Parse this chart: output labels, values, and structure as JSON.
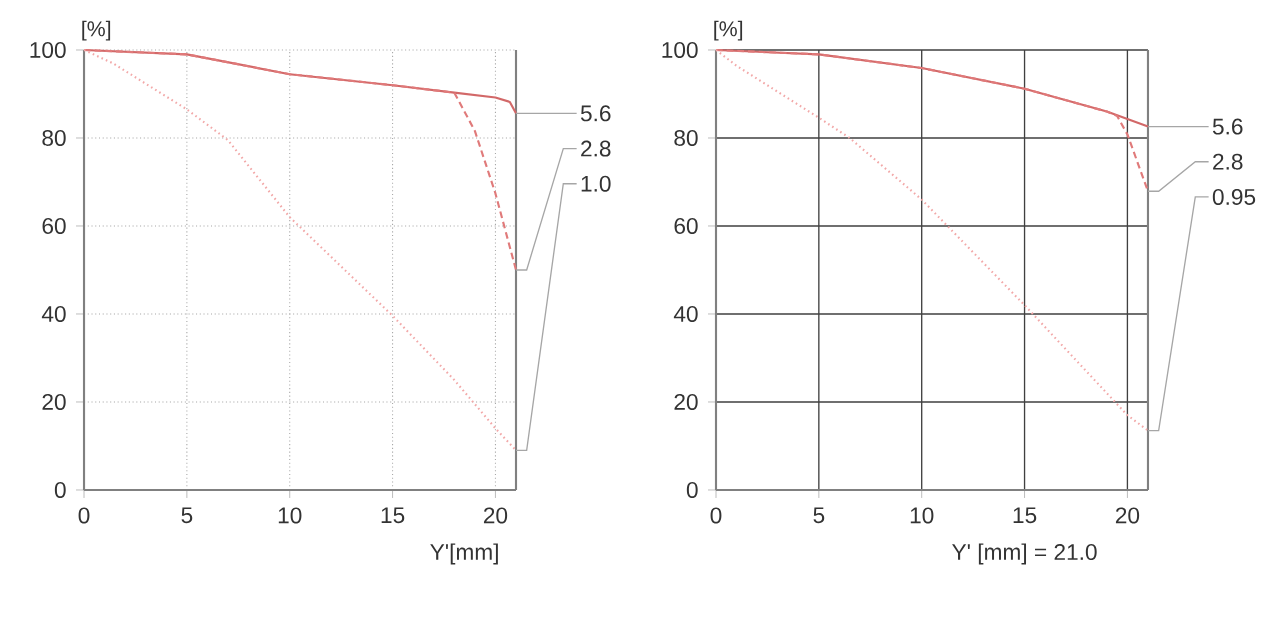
{
  "chart_data": [
    {
      "type": "line",
      "ylabel": "[%]",
      "xlabel": "Y'[mm]",
      "xlim": [
        0,
        21
      ],
      "ylim": [
        0,
        100
      ],
      "xticks": [
        0,
        5,
        10,
        15,
        20
      ],
      "yticks": [
        0,
        20,
        40,
        60,
        80,
        100
      ],
      "grid": true,
      "marker": "none",
      "series": [
        {
          "name": "5.6",
          "color": "#d26868",
          "line_style": "solid",
          "x": [
            0,
            5,
            10,
            15,
            18,
            20,
            20.7,
            21
          ],
          "values": [
            100,
            99,
            94.5,
            92,
            90.3,
            89.2,
            88.2,
            85.6
          ]
        },
        {
          "name": "2.8",
          "color": "#e07a7a",
          "line_style": "dashed",
          "x": [
            0,
            5,
            10,
            15,
            18,
            19,
            20,
            21
          ],
          "values": [
            100,
            99,
            94.5,
            92,
            90.3,
            81.6,
            67.4,
            50
          ]
        },
        {
          "name": "1.0",
          "color": "#f2a8a8",
          "line_style": "dotted",
          "x": [
            0,
            1.4,
            5,
            7,
            10,
            15,
            18,
            20,
            21
          ],
          "values": [
            100,
            97,
            86.5,
            79.5,
            62,
            39.6,
            25,
            14,
            9
          ]
        }
      ]
    },
    {
      "type": "line",
      "ylabel": "[%]",
      "xlabel": "Y' [mm] =   21.0",
      "xlim": [
        0,
        21
      ],
      "ylim": [
        0,
        100
      ],
      "xticks": [
        0,
        5,
        10,
        15,
        20
      ],
      "yticks": [
        0,
        20,
        40,
        60,
        80,
        100
      ],
      "grid": true,
      "marker": "none",
      "series": [
        {
          "name": "5.6",
          "color": "#d26868",
          "line_style": "solid",
          "x": [
            0,
            5,
            10,
            15,
            19,
            20,
            21
          ],
          "values": [
            100,
            99,
            95.9,
            91.2,
            86,
            84.3,
            82.6
          ]
        },
        {
          "name": "2.8",
          "color": "#e07a7a",
          "line_style": "dashed",
          "x": [
            0,
            5,
            10,
            15,
            19,
            19.5,
            20,
            21
          ],
          "values": [
            100,
            99,
            95.9,
            91.2,
            86,
            85,
            80.8,
            67.9
          ]
        },
        {
          "name": "0.95",
          "color": "#f2a8a8",
          "line_style": "dotted",
          "x": [
            0,
            1,
            5,
            6.5,
            10,
            15,
            20,
            21
          ],
          "values": [
            100,
            96.4,
            84.6,
            80,
            66,
            42,
            17,
            13.5
          ]
        }
      ]
    }
  ]
}
